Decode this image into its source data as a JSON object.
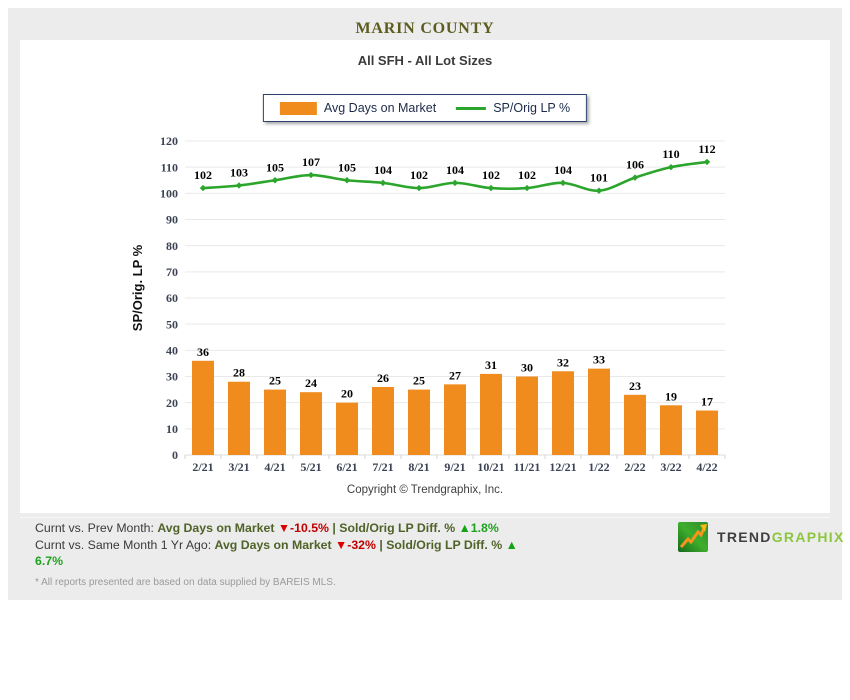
{
  "header": {
    "title": "MARIN COUNTY"
  },
  "subtitle": "All SFH - All Lot Sizes",
  "legend": [
    {
      "label": "Avg Days on Market",
      "type": "bar",
      "color": "#F08C1E"
    },
    {
      "label": "SP/Orig LP %",
      "type": "line",
      "color": "#2BA52B"
    }
  ],
  "chart_data": {
    "type": "bar+line",
    "categories": [
      "2/21",
      "3/21",
      "4/21",
      "5/21",
      "6/21",
      "7/21",
      "8/21",
      "9/21",
      "10/21",
      "11/21",
      "12/21",
      "1/22",
      "2/22",
      "3/22",
      "4/22"
    ],
    "series": [
      {
        "name": "Avg Days on Market",
        "type": "bar",
        "color": "#F08C1E",
        "values": [
          36,
          28,
          25,
          24,
          20,
          26,
          25,
          27,
          31,
          30,
          32,
          33,
          23,
          19,
          17
        ]
      },
      {
        "name": "SP/Orig LP %",
        "type": "line",
        "color": "#2BA52B",
        "values": [
          102,
          103,
          105,
          107,
          105,
          104,
          102,
          104,
          102,
          102,
          104,
          101,
          106,
          110,
          112
        ]
      }
    ],
    "title": "All SFH - All Lot Sizes",
    "xlabel": "",
    "ylabel": "SP/Orig. LP %",
    "ylim": [
      0,
      120
    ],
    "ytick_step": 10,
    "grid": true,
    "legend_position": "top-center"
  },
  "copyright": "Copyright © Trendgraphix, Inc.",
  "footer": {
    "stats": [
      {
        "parts": [
          {
            "t": "Curnt vs. Prev Month: ",
            "s": "plain"
          },
          {
            "t": "Avg Days on Market ",
            "s": "metric"
          },
          {
            "t": "▼",
            "s": "down-icon"
          },
          {
            "t": "-10.5%",
            "s": "down"
          },
          {
            "t": " | ",
            "s": "metric"
          },
          {
            "t": "Sold/Orig LP Diff. % ",
            "s": "metric"
          },
          {
            "t": "▲",
            "s": "up-icon"
          },
          {
            "t": "1.8%",
            "s": "up"
          }
        ]
      },
      {
        "parts": [
          {
            "t": "Curnt vs. Same Month 1 Yr Ago: ",
            "s": "plain"
          },
          {
            "t": "Avg Days on Market ",
            "s": "metric"
          },
          {
            "t": "▼",
            "s": "down-icon"
          },
          {
            "t": "-32%",
            "s": "down"
          },
          {
            "t": " | ",
            "s": "metric"
          },
          {
            "t": "Sold/Orig LP Diff. % ",
            "s": "metric"
          },
          {
            "t": "▲",
            "s": "up-icon"
          }
        ]
      },
      {
        "parts": [
          {
            "t": "6.7%",
            "s": "up"
          }
        ]
      }
    ]
  },
  "logo": {
    "text1": "TREND",
    "text2": "GRAPHIX"
  },
  "disclaimer": "* All reports presented are based on data supplied by BAREIS MLS."
}
